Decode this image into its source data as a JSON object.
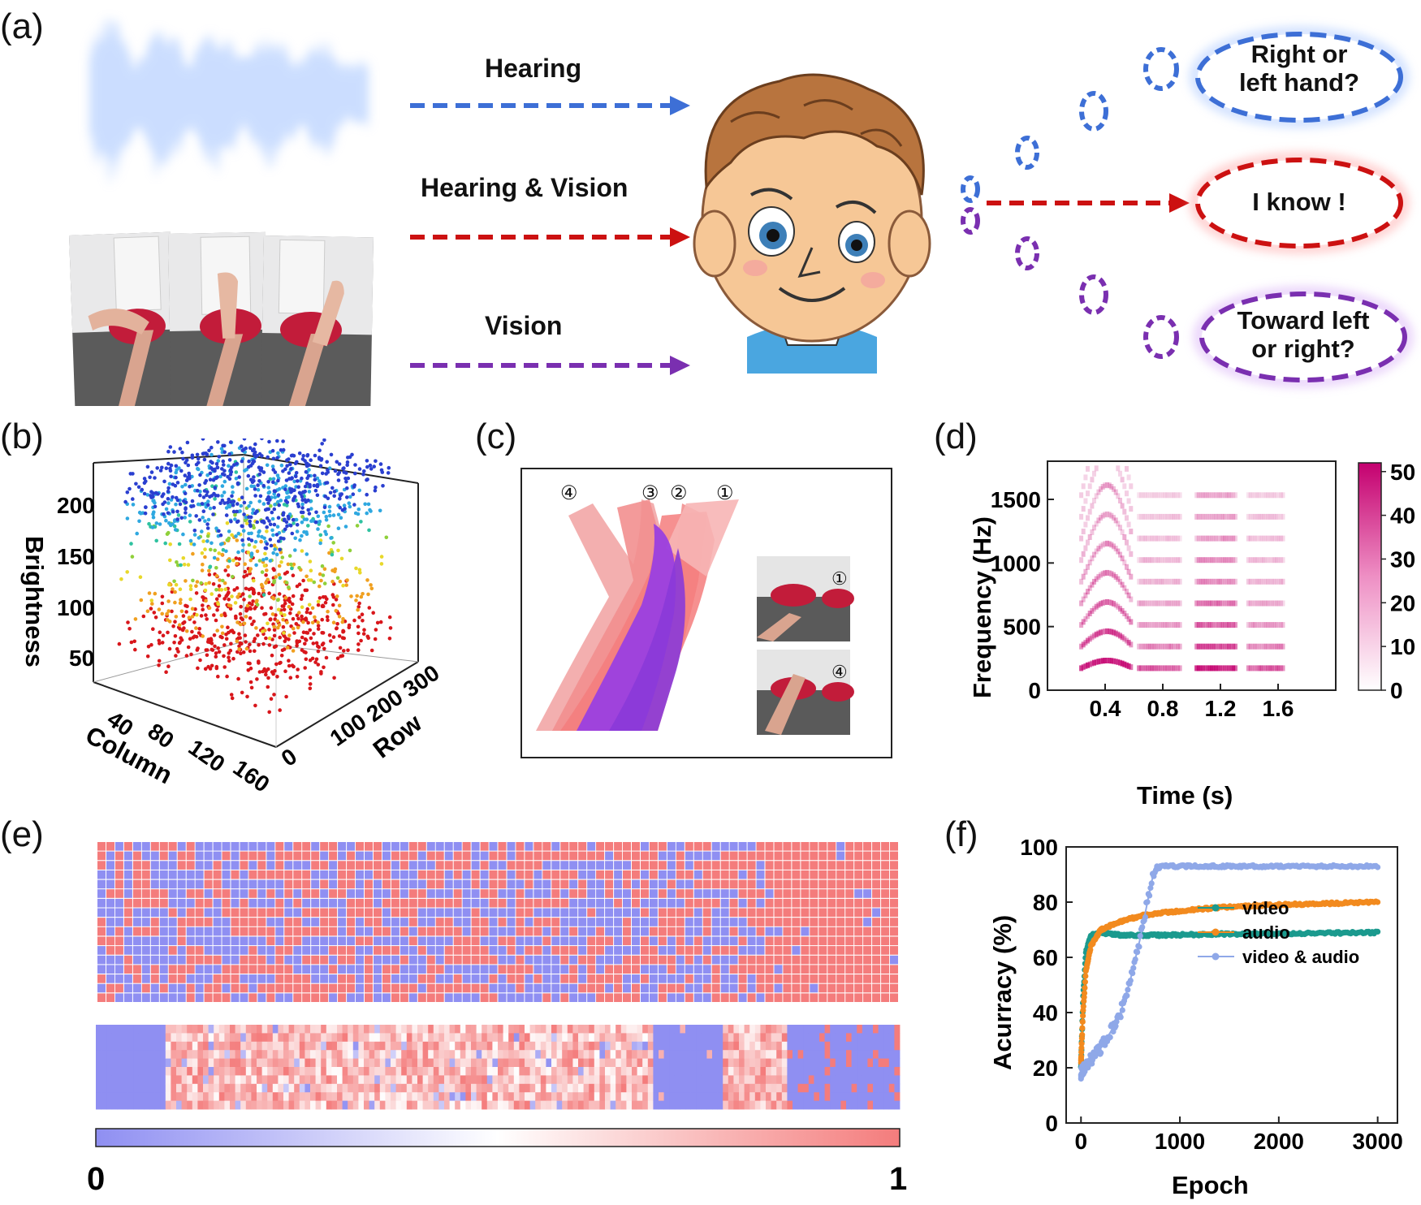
{
  "panels": {
    "a": "(a)",
    "b": "(b)",
    "c": "(c)",
    "d": "(d)",
    "e": "(e)",
    "f": "(f)"
  },
  "panel_a": {
    "arrows": [
      "Hearing",
      "Hearing & Vision",
      "Vision"
    ],
    "bubbles": [
      "Right  or\nleft hand?",
      "I know !",
      "Toward left\nor right?"
    ],
    "colors": {
      "hearing": "#3d6fd6",
      "both": "#cc1111",
      "vision": "#7a2fb0"
    }
  },
  "panel_b": {
    "zlabel": "Brightness",
    "xlabel": "Column",
    "ylabel": "Row",
    "z_ticks": [
      "50",
      "100",
      "150",
      "200"
    ],
    "x_ticks": [
      "40",
      "80",
      "120",
      "160"
    ],
    "y_ticks": [
      "0",
      "100",
      "200",
      "300"
    ]
  },
  "panel_c": {
    "markers": [
      "④",
      "③",
      "②",
      "①"
    ],
    "inset_markers": [
      "①",
      "④"
    ]
  },
  "chart_data": [
    {
      "type": "heatmap",
      "panel": "d",
      "xlabel": "Time (s)",
      "ylabel": "Frequency (Hz)",
      "x_ticks": [
        "0.4",
        "0.8",
        "1.2",
        "1.6"
      ],
      "y_ticks": [
        "0",
        "500",
        "1000",
        "1500"
      ],
      "xlim": [
        0,
        2.0
      ],
      "ylim": [
        0,
        1800
      ],
      "colorbar_ticks": [
        "0",
        "10",
        "20",
        "30",
        "40",
        "50"
      ],
      "colorbar_range": [
        0,
        52
      ]
    },
    {
      "type": "heatmap",
      "panel": "e",
      "colorbar_ticks": [
        "0",
        "1"
      ],
      "colorbar_range": [
        0,
        1
      ],
      "colors": {
        "low": "#8f8ff2",
        "mid": "#ffffff",
        "high": "#f47c7c"
      }
    },
    {
      "type": "line",
      "panel": "f",
      "xlabel": "Epoch",
      "ylabel": "Acurracy (%)",
      "xlim": [
        -150,
        3200
      ],
      "ylim": [
        0,
        100
      ],
      "x_ticks": [
        "0",
        "1000",
        "2000",
        "3000"
      ],
      "y_ticks": [
        "0",
        "20",
        "40",
        "60",
        "80",
        "100"
      ],
      "legend": "center-right",
      "series": [
        {
          "name": "video",
          "color": "#1b9a8e",
          "x": [
            0,
            20,
            50,
            100,
            200,
            400,
            800,
            1500,
            2000,
            3000
          ],
          "y": [
            20,
            45,
            62,
            68,
            69,
            68,
            68,
            68.5,
            68.5,
            69
          ]
        },
        {
          "name": "audio",
          "color": "#f28a1e",
          "x": [
            0,
            20,
            50,
            100,
            200,
            400,
            600,
            800,
            1200,
            1600,
            2000,
            2500,
            3000
          ],
          "y": [
            22,
            40,
            55,
            64,
            70,
            73,
            75,
            76,
            77.5,
            78.5,
            79,
            79.5,
            80
          ]
        },
        {
          "name": "video & audio",
          "color": "#8fa8e8",
          "x": [
            0,
            50,
            100,
            200,
            300,
            400,
            500,
            600,
            700,
            750,
            800,
            1500,
            2000,
            3000
          ],
          "y": [
            18,
            21,
            23,
            27,
            33,
            40,
            52,
            67,
            85,
            93,
            93,
            93,
            93,
            93
          ]
        }
      ]
    }
  ]
}
